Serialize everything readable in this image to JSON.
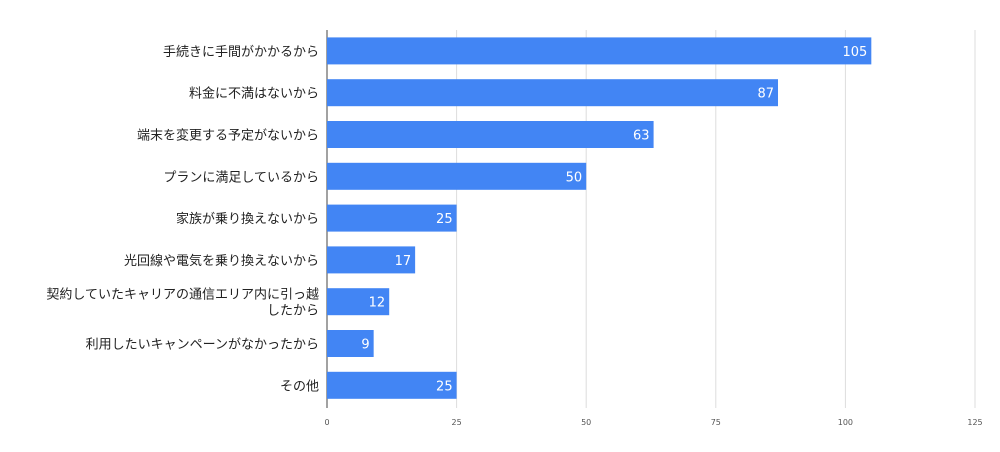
{
  "chart_data": {
    "type": "bar",
    "orientation": "horizontal",
    "categories": [
      [
        "手続きに手間がかかるから"
      ],
      [
        "料金に不満はないから"
      ],
      [
        "端末を変更する予定がないから"
      ],
      [
        "プランに満足しているから"
      ],
      [
        "家族が乗り換えないから"
      ],
      [
        "光回線や電気を乗り換えないから"
      ],
      [
        "契約していたキャリアの通信エリア内に引っ越",
        "したから"
      ],
      [
        "利用したいキャンペーンがなかったから"
      ],
      [
        "その他"
      ]
    ],
    "values": [
      105,
      87,
      63,
      50,
      25,
      17,
      12,
      9,
      25
    ],
    "x_ticks": [
      "0",
      "25",
      "50",
      "75",
      "100",
      "125"
    ],
    "xlim": [
      0,
      125
    ],
    "grid": true,
    "legend": "none",
    "bar_color": "#4285f4",
    "data_labels": true
  }
}
